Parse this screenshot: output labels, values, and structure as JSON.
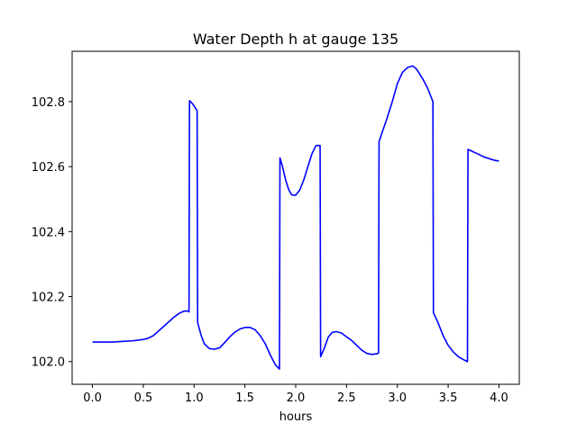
{
  "chart_data": {
    "type": "line",
    "title": "Water Depth h at gauge 135",
    "xlabel": "hours",
    "ylabel": "",
    "xlim": [
      -0.2,
      4.2
    ],
    "ylim": [
      101.93,
      102.955
    ],
    "xticks": [
      0.0,
      0.5,
      1.0,
      1.5,
      2.0,
      2.5,
      3.0,
      3.5,
      4.0
    ],
    "xtick_labels": [
      "0.0",
      "0.5",
      "1.0",
      "1.5",
      "2.0",
      "2.5",
      "3.0",
      "3.5",
      "4.0"
    ],
    "yticks": [
      102.0,
      102.2,
      102.4,
      102.6,
      102.8
    ],
    "ytick_labels": [
      "102.0",
      "102.2",
      "102.4",
      "102.6",
      "102.8"
    ],
    "grid": false,
    "series": [
      {
        "color": "#0000ff",
        "x": [
          0.0,
          0.1,
          0.2,
          0.3,
          0.4,
          0.5,
          0.55,
          0.6,
          0.65,
          0.7,
          0.75,
          0.8,
          0.85,
          0.9,
          0.93,
          0.95,
          0.955,
          0.98,
          1.0,
          1.03,
          1.035,
          1.07,
          1.1,
          1.15,
          1.2,
          1.25,
          1.3,
          1.35,
          1.4,
          1.45,
          1.5,
          1.55,
          1.6,
          1.65,
          1.7,
          1.75,
          1.8,
          1.84,
          1.845,
          1.87,
          1.9,
          1.93,
          1.96,
          2.0,
          2.04,
          2.08,
          2.12,
          2.16,
          2.2,
          2.24,
          2.245,
          2.28,
          2.32,
          2.36,
          2.4,
          2.45,
          2.5,
          2.55,
          2.6,
          2.65,
          2.7,
          2.75,
          2.8,
          2.815,
          2.82,
          2.85,
          2.9,
          2.95,
          3.0,
          3.05,
          3.1,
          3.15,
          3.18,
          3.2,
          3.25,
          3.3,
          3.35,
          3.355,
          3.4,
          3.45,
          3.5,
          3.55,
          3.6,
          3.65,
          3.69,
          3.695,
          3.75,
          3.8,
          3.85,
          3.9,
          3.95,
          4.0
        ],
        "y": [
          102.06,
          102.06,
          102.06,
          102.062,
          102.064,
          102.068,
          102.072,
          102.08,
          102.094,
          102.108,
          102.122,
          102.136,
          102.148,
          102.155,
          102.156,
          102.153,
          102.803,
          102.795,
          102.787,
          102.772,
          102.12,
          102.08,
          102.055,
          102.04,
          102.038,
          102.042,
          102.058,
          102.076,
          102.09,
          102.1,
          102.105,
          102.105,
          102.098,
          102.08,
          102.055,
          102.02,
          101.99,
          101.977,
          102.627,
          102.6,
          102.56,
          102.53,
          102.513,
          102.512,
          102.528,
          102.56,
          102.6,
          102.64,
          102.665,
          102.665,
          102.015,
          102.04,
          102.075,
          102.09,
          102.092,
          102.088,
          102.076,
          102.065,
          102.05,
          102.035,
          102.025,
          102.022,
          102.024,
          102.026,
          102.677,
          102.705,
          102.75,
          102.8,
          102.855,
          102.89,
          102.905,
          102.91,
          102.903,
          102.895,
          102.87,
          102.84,
          102.8,
          102.15,
          102.12,
          102.08,
          102.05,
          102.03,
          102.015,
          102.006,
          102.0,
          102.653,
          102.645,
          102.638,
          102.63,
          102.625,
          102.62,
          102.617
        ]
      }
    ]
  }
}
